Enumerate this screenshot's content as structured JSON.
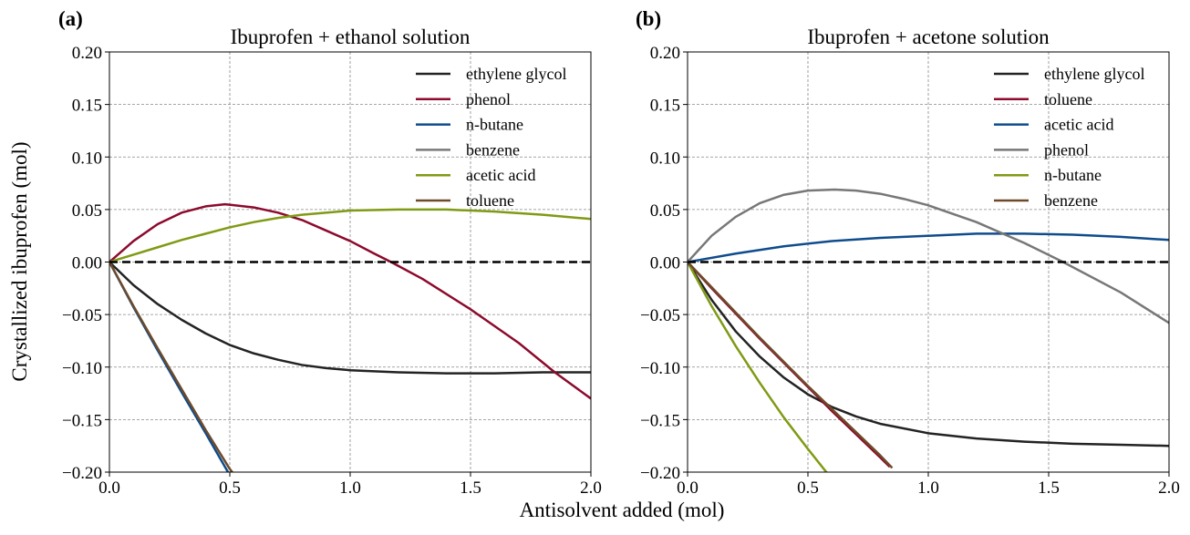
{
  "figure": {
    "ylabel": "Crystallized ibuprofen (mol)",
    "xlabel": "Antisolvent added (mol)"
  },
  "chart_data": [
    {
      "type": "line",
      "panel_label": "(a)",
      "title": "Ibuprofen + ethanol solution",
      "xlim": [
        0.0,
        2.0
      ],
      "ylim": [
        -0.2,
        0.2
      ],
      "xticks": [
        "0.0",
        "0.5",
        "1.0",
        "1.5",
        "2.0"
      ],
      "yticks": [
        "0.20",
        "0.15",
        "0.10",
        "0.05",
        "0.00",
        "−0.05",
        "−0.10",
        "−0.15",
        "−0.20"
      ],
      "ytick_values": [
        0.2,
        0.15,
        0.1,
        0.05,
        0.0,
        -0.05,
        -0.1,
        -0.15,
        -0.2
      ],
      "xtick_values": [
        0.0,
        0.5,
        1.0,
        1.5,
        2.0
      ],
      "grid": true,
      "legend_position": "top-right",
      "reference_line": {
        "y": 0.0,
        "style": "dashed",
        "color": "#000000"
      },
      "series": [
        {
          "name": "ethylene glycol",
          "color": "#232323",
          "x": [
            0.0,
            0.1,
            0.2,
            0.3,
            0.4,
            0.5,
            0.6,
            0.7,
            0.8,
            0.9,
            1.0,
            1.2,
            1.4,
            1.6,
            1.8,
            2.0
          ],
          "y": [
            0.0,
            -0.022,
            -0.04,
            -0.055,
            -0.068,
            -0.079,
            -0.087,
            -0.093,
            -0.098,
            -0.101,
            -0.103,
            -0.105,
            -0.106,
            -0.106,
            -0.105,
            -0.105
          ]
        },
        {
          "name": "phenol",
          "color": "#8c0a2c",
          "x": [
            0.0,
            0.1,
            0.2,
            0.3,
            0.4,
            0.48,
            0.6,
            0.7,
            0.8,
            0.9,
            1.0,
            1.1,
            1.17,
            1.3,
            1.5,
            1.7,
            1.85,
            2.0
          ],
          "y": [
            0.0,
            0.02,
            0.036,
            0.047,
            0.053,
            0.055,
            0.052,
            0.047,
            0.04,
            0.03,
            0.02,
            0.008,
            0.0,
            -0.016,
            -0.045,
            -0.077,
            -0.105,
            -0.13
          ]
        },
        {
          "name": "n-butane",
          "color": "#0f4c8c",
          "x": [
            0.0,
            0.1,
            0.2,
            0.3,
            0.4,
            0.5
          ],
          "y": [
            0.0,
            -0.043,
            -0.084,
            -0.124,
            -0.163,
            -0.203
          ]
        },
        {
          "name": "benzene",
          "color": "#7a7a7a",
          "x": [],
          "y": []
        },
        {
          "name": "acetic acid",
          "color": "#7f9a14",
          "x": [
            0.0,
            0.1,
            0.2,
            0.3,
            0.4,
            0.5,
            0.6,
            0.7,
            0.8,
            1.0,
            1.2,
            1.4,
            1.6,
            1.8,
            2.0
          ],
          "y": [
            0.0,
            0.007,
            0.014,
            0.021,
            0.027,
            0.033,
            0.038,
            0.042,
            0.045,
            0.049,
            0.05,
            0.05,
            0.048,
            0.045,
            0.041
          ]
        },
        {
          "name": "toluene",
          "color": "#6e4a2a",
          "x": [
            0.0,
            0.1,
            0.2,
            0.3,
            0.4,
            0.5,
            0.52
          ],
          "y": [
            0.0,
            -0.042,
            -0.082,
            -0.121,
            -0.16,
            -0.197,
            -0.203
          ]
        }
      ]
    },
    {
      "type": "line",
      "panel_label": "(b)",
      "title": "Ibuprofen + acetone solution",
      "xlim": [
        0.0,
        2.0
      ],
      "ylim": [
        -0.2,
        0.2
      ],
      "xticks": [
        "0.0",
        "0.5",
        "1.0",
        "1.5",
        "2.0"
      ],
      "yticks": [
        "0.20",
        "0.15",
        "0.10",
        "0.05",
        "0.00",
        "−0.05",
        "−0.10",
        "−0.15",
        "−0.20"
      ],
      "ytick_values": [
        0.2,
        0.15,
        0.1,
        0.05,
        0.0,
        -0.05,
        -0.1,
        -0.15,
        -0.2
      ],
      "xtick_values": [
        0.0,
        0.5,
        1.0,
        1.5,
        2.0
      ],
      "grid": true,
      "legend_position": "top-right",
      "reference_line": {
        "y": 0.0,
        "style": "dashed",
        "color": "#000000"
      },
      "series": [
        {
          "name": "ethylene glycol",
          "color": "#232323",
          "x": [
            0.0,
            0.1,
            0.2,
            0.3,
            0.4,
            0.5,
            0.6,
            0.7,
            0.8,
            1.0,
            1.2,
            1.4,
            1.6,
            1.8,
            2.0
          ],
          "y": [
            0.0,
            -0.036,
            -0.066,
            -0.09,
            -0.11,
            -0.126,
            -0.138,
            -0.147,
            -0.154,
            -0.163,
            -0.168,
            -0.171,
            -0.173,
            -0.174,
            -0.175
          ]
        },
        {
          "name": "toluene",
          "color": "#8c0a2c",
          "x": [
            0.0,
            0.1,
            0.2,
            0.3,
            0.4,
            0.5,
            0.6,
            0.7,
            0.8,
            0.84
          ],
          "y": [
            0.0,
            -0.025,
            -0.049,
            -0.073,
            -0.096,
            -0.119,
            -0.142,
            -0.164,
            -0.186,
            -0.195
          ]
        },
        {
          "name": "acetic acid",
          "color": "#0f4c8c",
          "x": [
            0.0,
            0.2,
            0.4,
            0.6,
            0.8,
            1.0,
            1.2,
            1.4,
            1.6,
            1.8,
            2.0
          ],
          "y": [
            0.0,
            0.008,
            0.015,
            0.02,
            0.023,
            0.025,
            0.027,
            0.027,
            0.026,
            0.024,
            0.021
          ]
        },
        {
          "name": "phenol",
          "color": "#777777",
          "x": [
            0.0,
            0.1,
            0.2,
            0.3,
            0.4,
            0.5,
            0.61,
            0.7,
            0.8,
            0.9,
            1.0,
            1.2,
            1.4,
            1.56,
            1.8,
            2.0
          ],
          "y": [
            0.0,
            0.025,
            0.043,
            0.056,
            0.064,
            0.068,
            0.069,
            0.068,
            0.065,
            0.06,
            0.054,
            0.038,
            0.018,
            0.0,
            -0.029,
            -0.058
          ]
        },
        {
          "name": "n-butane",
          "color": "#7f9a14",
          "x": [
            0.0,
            0.1,
            0.2,
            0.3,
            0.4,
            0.5,
            0.58
          ],
          "y": [
            0.0,
            -0.042,
            -0.08,
            -0.115,
            -0.148,
            -0.178,
            -0.201
          ]
        },
        {
          "name": "benzene",
          "color": "#6e4a2a",
          "x": [
            0.0,
            0.1,
            0.2,
            0.3,
            0.4,
            0.5,
            0.6,
            0.7,
            0.8,
            0.85
          ],
          "y": [
            0.0,
            -0.024,
            -0.048,
            -0.072,
            -0.095,
            -0.118,
            -0.14,
            -0.162,
            -0.184,
            -0.196
          ]
        }
      ]
    }
  ]
}
